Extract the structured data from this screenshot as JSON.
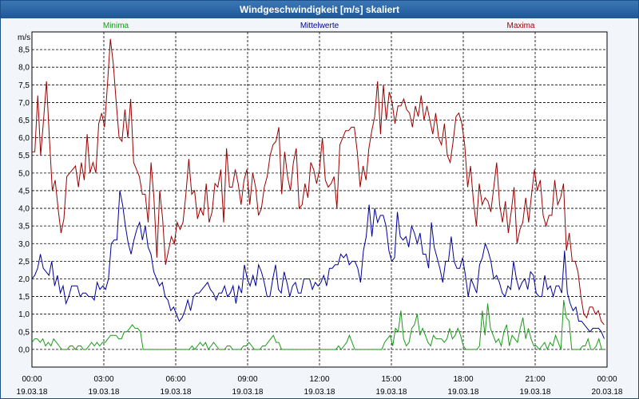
{
  "window": {
    "title": "Windgeschwindigkeit [m/s] skaliert"
  },
  "chart_data": {
    "type": "line",
    "title": "Windgeschwindigkeit [m/s] skaliert",
    "ylabel": "m/s",
    "ylim": [
      -0.5,
      9.0
    ],
    "xlim_hours": [
      0,
      24
    ],
    "yticks": [
      "0,0",
      "0,5",
      "1,0",
      "1,5",
      "2,0",
      "2,5",
      "3,0",
      "3,5",
      "4,0",
      "4,5",
      "5,0",
      "5,5",
      "6,0",
      "6,5",
      "7,0",
      "7,5",
      "8,0",
      "8,5"
    ],
    "ytick_values": [
      0,
      0.5,
      1,
      1.5,
      2,
      2.5,
      3,
      3.5,
      4,
      4.5,
      5,
      5.5,
      6,
      6.5,
      7,
      7.5,
      8,
      8.5
    ],
    "xticks": [
      {
        "time": "00:00",
        "date": "19.03.18"
      },
      {
        "time": "03:00",
        "date": "19.03.18"
      },
      {
        "time": "06:00",
        "date": "19.03.18"
      },
      {
        "time": "09:00",
        "date": "19.03.18"
      },
      {
        "time": "12:00",
        "date": "19.03.18"
      },
      {
        "time": "15:00",
        "date": "19.03.18"
      },
      {
        "time": "18:00",
        "date": "19.03.18"
      },
      {
        "time": "21:00",
        "date": "19.03.18"
      },
      {
        "time": "00:00",
        "date": "20.03.18"
      }
    ],
    "series": [
      {
        "name": "Minima",
        "color": "#1a9a1a",
        "values": [
          0.2,
          0.3,
          0.3,
          0.2,
          0.3,
          0.1,
          0.2,
          0.1,
          0.3,
          0.2,
          0.1,
          0,
          0,
          0,
          0.1,
          0.1,
          0,
          0.1,
          0.1,
          0,
          0,
          0.1,
          0.2,
          0.1,
          0.2,
          0.1,
          0.2,
          0.2,
          0.3,
          0.4,
          0.4,
          0.4,
          0.3,
          0.3,
          0.5,
          0.5,
          0.6,
          0.7,
          0.6,
          0.6,
          0.5,
          0,
          0,
          0,
          0,
          0,
          0,
          0,
          0,
          0,
          0,
          0,
          0,
          0,
          0,
          0,
          0,
          0,
          0,
          0.1,
          0,
          0.1,
          0.2,
          0.1,
          0.2,
          0,
          0.1,
          0.2,
          0.1,
          0,
          0,
          0,
          0.1,
          0.1,
          0,
          0,
          0,
          0,
          0.1,
          0.1,
          0.2,
          0.1,
          0,
          0,
          0,
          0.1,
          0.1,
          0.2,
          0.3,
          0.4,
          0.2,
          0.2,
          0,
          0,
          0,
          0,
          0,
          0,
          0,
          0,
          0,
          0,
          0,
          0,
          0,
          0,
          0,
          0,
          0,
          0,
          0,
          0,
          0,
          0.1,
          0,
          0.1,
          0.2,
          0.4,
          0.2,
          0,
          0,
          0,
          0,
          0,
          0,
          0,
          0,
          0,
          0,
          0,
          0.2,
          0.3,
          0.4,
          0.1,
          0.6,
          0.5,
          1.1,
          0.3,
          0.1,
          0.2,
          0.6,
          0.7,
          1.0,
          0.4,
          0.6,
          0.4,
          0.2,
          0.1,
          0.4,
          0.3,
          0.3,
          0.3,
          0.2,
          0.3,
          0.6,
          0.3,
          0.4,
          0.6,
          0.4,
          0.1,
          0,
          0,
          0,
          0,
          0,
          0.1,
          1.1,
          0.4,
          1.3,
          0.6,
          0.4,
          0.2,
          0.3,
          0.1,
          0.5,
          0.7,
          0.1,
          0.4,
          0.3,
          0.2,
          0.6,
          0.9,
          0.3,
          0.6,
          0.3,
          0.1,
          0.1,
          0,
          0.1,
          0.2,
          0,
          0.2,
          0.1,
          0.4,
          0.2,
          0,
          1.4,
          0.9,
          0.8,
          0,
          0,
          0,
          0,
          0.1,
          0.1,
          0.3,
          0,
          0,
          0.1,
          0.3,
          0,
          0
        ]
      },
      {
        "name": "Mittelwerte",
        "color": "#00009c",
        "values": [
          2.0,
          2.1,
          2.3,
          2.7,
          2.3,
          2.2,
          2.1,
          2.5,
          1.8,
          2.1,
          1.6,
          1.8,
          1.3,
          1.5,
          1.8,
          1.8,
          1.8,
          1.5,
          1.6,
          1.6,
          1.5,
          1.5,
          1.4,
          1.9,
          1.7,
          1.8,
          1.7,
          2.0,
          3.0,
          3.1,
          3.1,
          4.5,
          4.1,
          3.5,
          3.0,
          2.7,
          3.1,
          3.4,
          3.6,
          3.1,
          3.5,
          2.9,
          2.7,
          2.2,
          2.0,
          1.8,
          1.9,
          1.5,
          1.4,
          1.1,
          1.2,
          1.0,
          0.8,
          0.9,
          1.1,
          1.4,
          1.1,
          1.5,
          1.6,
          1.6,
          1.7,
          1.8,
          1.9,
          1.7,
          1.6,
          1.4,
          1.6,
          1.6,
          1.8,
          1.5,
          1.6,
          1.8,
          1.3,
          1.8,
          1.6,
          2.4,
          2.0,
          1.8,
          2.1,
          1.8,
          2.4,
          2.2,
          1.9,
          1.5,
          1.5,
          2.0,
          2.4,
          1.7,
          1.6,
          2.2,
          1.9,
          1.5,
          1.8,
          1.9,
          1.6,
          1.6,
          2.0,
          2.0,
          2.0,
          1.7,
          1.9,
          1.8,
          1.9,
          2.1,
          1.8,
          2.3,
          2.3,
          2.4,
          2.4,
          2.7,
          2.6,
          2.7,
          2.4,
          2.5,
          2.5,
          2.3,
          1.9,
          2.8,
          3.2,
          4.1,
          3.2,
          4.0,
          3.6,
          3.8,
          3.8,
          3.5,
          2.8,
          2.5,
          2.6,
          3.9,
          3.2,
          3.1,
          3.2,
          2.9,
          3.5,
          3.3,
          3.0,
          3.3,
          2.7,
          2.7,
          2.3,
          3.6,
          2.9,
          2.6,
          2.3,
          1.9,
          2.5,
          2.5,
          3.2,
          2.5,
          2.3,
          2.3,
          2.6,
          2.1,
          1.5,
          2.0,
          1.8,
          1.6,
          2.4,
          2.6,
          3.0,
          2.8,
          2.5,
          2.0,
          2.1,
          1.9,
          1.6,
          1.5,
          1.8,
          1.7,
          2.5,
          2.0,
          1.7,
          1.9,
          2.0,
          1.7,
          2.2,
          2.1,
          1.6,
          1.5,
          1.5,
          2.1,
          1.7,
          1.8,
          1.5,
          1.8,
          1.8,
          1.6,
          2.8,
          1.6,
          1.3,
          1.1,
          1.2,
          0.8,
          0.8,
          0.7,
          0.6,
          0.5,
          0.6,
          0.6,
          0.6,
          0.5,
          0.3
        ]
      },
      {
        "name": "Maxima",
        "color": "#9c0000",
        "values": [
          5.6,
          5.6,
          7.2,
          5.5,
          6.5,
          7.6,
          6.0,
          4.5,
          4.8,
          4.0,
          3.3,
          3.7,
          4.9,
          5.0,
          5.1,
          5.2,
          4.6,
          5.3,
          4.8,
          6.1,
          5.0,
          5.3,
          5.0,
          6.4,
          6.7,
          6.3,
          7.5,
          8.8,
          8.1,
          7.0,
          6.0,
          5.9,
          6.8,
          6.0,
          7.1,
          5.3,
          5.1,
          4.9,
          4.4,
          4.4,
          3.6,
          5.3,
          4.3,
          2.6,
          4.5,
          3.7,
          2.4,
          2.8,
          3.2,
          3.0,
          3.6,
          3.4,
          3.6,
          4.4,
          5.4,
          4.4,
          4.5,
          3.7,
          4.0,
          3.8,
          4.7,
          3.6,
          3.9,
          4.7,
          4.6,
          5.1,
          3.6,
          5.7,
          4.6,
          4.6,
          5.1,
          4.7,
          4.1,
          4.8,
          5.1,
          4.1,
          5.0,
          4.6,
          3.8,
          4.0,
          4.6,
          4.9,
          5.5,
          5.8,
          5.9,
          6.3,
          4.4,
          5.6,
          4.9,
          4.5,
          5.3,
          5.7,
          4.0,
          4.1,
          4.7,
          4.3,
          5.3,
          5.1,
          4.7,
          5.1,
          6.0,
          4.8,
          4.6,
          4.7,
          4.9,
          4.0,
          5.8,
          6.0,
          6.2,
          6.2,
          6.3,
          6.3,
          5.6,
          4.6,
          5.2,
          4.8,
          5.7,
          6.2,
          6.6,
          7.6,
          6.1,
          7.5,
          6.5,
          7.3,
          7.0,
          6.4,
          6.9,
          6.9,
          7.1,
          6.8,
          6.7,
          6.3,
          6.9,
          6.6,
          7.2,
          6.5,
          6.9,
          6.5,
          6.1,
          6.7,
          6.0,
          5.8,
          6.4,
          5.5,
          5.3,
          5.9,
          6.6,
          6.7,
          6.4,
          5.8,
          4.6,
          5.2,
          4.2,
          3.5,
          4.7,
          4.1,
          4.3,
          4.2,
          3.9,
          4.6,
          5.3,
          4.1,
          3.6,
          4.2,
          3.3,
          3.9,
          4.6,
          3.0,
          3.4,
          3.6,
          4.3,
          3.6,
          4.4,
          5.1,
          4.5,
          4.8,
          3.8,
          3.5,
          3.8,
          3.8,
          4.8,
          4.1,
          4.3,
          4.7,
          2.8,
          3.3,
          2.5,
          2.5,
          2.2,
          1.5,
          1.0,
          0.9,
          1.2,
          1.2,
          1.0,
          1.1,
          0.8,
          0.7
        ]
      }
    ]
  }
}
